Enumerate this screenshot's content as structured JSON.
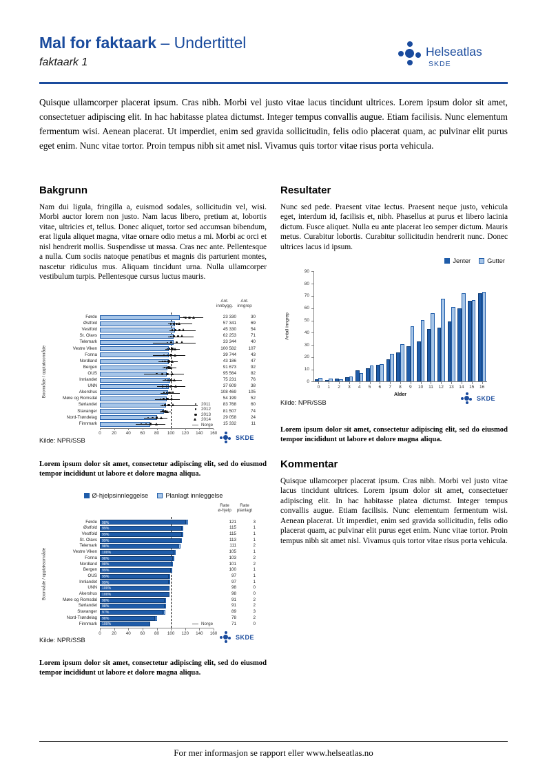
{
  "header": {
    "title_bold": "Mal for faktaark",
    "title_rest": " – Undertittel",
    "tagline": "faktaark 1",
    "logo_text": "Helseatlas",
    "logo_sub": "SKDE"
  },
  "intro": "Quisque ullamcorper placerat ipsum. Cras nibh. Morbi vel justo vitae lacus tincidunt ultrices. Lorem ipsum dolor sit amet, consectetuer adipiscing elit. In hac habitasse platea dictumst. Integer tempus convallis augue. Etiam facilisis. Nunc elementum fermentum wisi. Aenean placerat. Ut imperdiet, enim sed gravida sollicitudin, felis odio placerat quam, ac pulvinar elit purus eget enim. Nunc vitae tortor. Proin tempus nibh sit amet nisl. Vivamus quis tortor vitae risus porta vehicula.",
  "bakgrunn": {
    "heading": "Bakgrunn",
    "text": "Nam dui ligula, fringilla a, euismod sodales, sollicitudin vel, wisi. Morbi auctor lorem non justo. Nam lacus libero, pretium at, lobortis vitae, ultricies et, tellus. Donec aliquet, tortor sed accumsan bibendum, erat ligula aliquet magna, vitae ornare odio metus a mi. Morbi ac orci et nisl hendrerit mollis. Suspendisse ut massa. Cras nec ante. Pellentesque a nulla. Cum sociis natoque penatibus et magnis dis parturient montes, nascetur ridiculus mus. Aliquam tincidunt urna. Nulla ullamcorper vestibulum turpis. Pellentesque cursus luctus mauris."
  },
  "resultater": {
    "heading": "Resultater",
    "text": "Nunc sed pede. Praesent vitae lectus. Praesent neque justo, vehicula eget, interdum id, facilisis et, nibh. Phasellus at purus et libero lacinia dictum. Fusce aliquet. Nulla eu ante placerat leo semper dictum. Mauris metus. Curabitur lobortis. Curabitur sollicitudin hendrerit nunc. Donec ultrices lacus id ipsum."
  },
  "kommentar": {
    "heading": "Kommentar",
    "text": "Quisque ullamcorper placerat ipsum. Cras nibh. Morbi vel justo vitae lacus tincidunt ultrices. Lorem ipsum dolor sit amet, consectetuer adipiscing elit. In hac habitasse platea dictumst. Integer tempus convallis augue. Etiam facilisis. Nunc elementum fermentum wisi. Aenean placerat. Ut imperdiet, enim sed gravida sollicitudin, felis odio placerat quam, ac pulvinar elit purus eget enim. Nunc vitae tortor. Proin tempus nibh sit amet nisl. Vivamus quis tortor vitae risus porta vehicula.",
    "heading_note": ""
  },
  "caption": "Lorem ipsum dolor sit amet, consectetur adipiscing elit, sed do eiusmod tempor incididunt ut labore et dolore magna aliqua.",
  "footer": "For mer informasjon se rapport eller www.helseatlas.no",
  "colors": {
    "brand_blue": "#1A4B9D",
    "bar_dark": "#1F5CA9",
    "bar_dark_border": "#123D73",
    "bar_light": "#A6C5E8",
    "norge_line": "#000000"
  },
  "chart_data": [
    {
      "id": "area-rate-chart",
      "type": "bar",
      "orientation": "horizontal",
      "ylabel": "Boområde / opptaksområde",
      "xlim": [
        0,
        160
      ],
      "xticks": [
        0,
        20,
        40,
        60,
        80,
        100,
        120,
        140,
        160
      ],
      "norge_value": 100,
      "legend": [
        {
          "marker": "dot-small",
          "label": "2011"
        },
        {
          "marker": "dot-medium",
          "label": "2012"
        },
        {
          "marker": "dot-large",
          "label": "2013"
        },
        {
          "marker": "triangle",
          "label": "2014"
        },
        {
          "marker": "dash",
          "label": "Norge"
        }
      ],
      "columns": [
        "Ant. innbygg.",
        "Ant. inngrep"
      ],
      "source": "Kilde: NPR/SSB",
      "logo": "SKDE",
      "rows": [
        {
          "name": "Førde",
          "bar": 112,
          "whisker": [
            112,
            145
          ],
          "markers": [
            118,
            121,
            126,
            132
          ],
          "innbygg": "23 330",
          "inngrep": "30"
        },
        {
          "name": "Østfold",
          "bar": 106,
          "whisker": [
            96,
            130
          ],
          "markers": [
            100,
            104,
            108,
            112
          ],
          "innbygg": "57 341",
          "inngrep": "69"
        },
        {
          "name": "Vestfold",
          "bar": 106,
          "whisker": [
            98,
            135
          ],
          "markers": [
            102,
            106,
            112,
            118
          ],
          "innbygg": "45 330",
          "inngrep": "54"
        },
        {
          "name": "St. Olavs",
          "bar": 104,
          "whisker": [
            96,
            132
          ],
          "markers": [
            100,
            104,
            110,
            116
          ],
          "innbygg": "62 253",
          "inngrep": "71"
        },
        {
          "name": "Telemark",
          "bar": 104,
          "whisker": [
            75,
            135
          ],
          "markers": [
            95,
            100,
            108,
            116
          ],
          "innbygg": "33 344",
          "inngrep": "40"
        },
        {
          "name": "Vestre Viken",
          "bar": 97,
          "whisker": [
            92,
            112
          ],
          "markers": [
            95,
            98,
            102,
            106
          ],
          "innbygg": "100 582",
          "inngrep": "107"
        },
        {
          "name": "Fonna",
          "bar": 97,
          "whisker": [
            75,
            120
          ],
          "markers": [
            90,
            95,
            100,
            106
          ],
          "innbygg": "39 744",
          "inngrep": "43"
        },
        {
          "name": "Nordland",
          "bar": 97,
          "whisker": [
            82,
            110
          ],
          "markers": [
            88,
            92,
            97,
            102
          ],
          "innbygg": "43 186",
          "inngrep": "47"
        },
        {
          "name": "Bergen",
          "bar": 95,
          "whisker": [
            88,
            108
          ],
          "markers": [
            91,
            94,
            97,
            100
          ],
          "innbygg": "91 673",
          "inngrep": "92"
        },
        {
          "name": "OUS",
          "bar": 94,
          "whisker": [
            62,
            118
          ],
          "markers": [
            80,
            88,
            95,
            102
          ],
          "innbygg": "95 564",
          "inngrep": "82"
        },
        {
          "name": "Innlandet",
          "bar": 99,
          "whisker": [
            88,
            115
          ],
          "markers": [
            92,
            96,
            100,
            105
          ],
          "innbygg": "75 231",
          "inngrep": "76"
        },
        {
          "name": "UNN",
          "bar": 97,
          "whisker": [
            80,
            120
          ],
          "markers": [
            88,
            94,
            100,
            107
          ],
          "innbygg": "37 609",
          "inngrep": "38"
        },
        {
          "name": "Akershus",
          "bar": 96,
          "whisker": [
            85,
            112
          ],
          "markers": [
            90,
            94,
            98,
            103
          ],
          "innbygg": "108 469",
          "inngrep": "105"
        },
        {
          "name": "Møre og Romsdal",
          "bar": 94,
          "whisker": [
            78,
            112
          ],
          "markers": [
            85,
            90,
            95,
            101
          ],
          "innbygg": "54 199",
          "inngrep": "52"
        },
        {
          "name": "Sørlandet",
          "bar": 93,
          "whisker": [
            85,
            138
          ],
          "markers": [
            88,
            92,
            97,
            103
          ],
          "innbygg": "83 768",
          "inngrep": "60"
        },
        {
          "name": "Stavanger",
          "bar": 90,
          "whisker": [
            84,
            100
          ],
          "markers": [
            86,
            89,
            92,
            96
          ],
          "innbygg": "81 507",
          "inngrep": "74"
        },
        {
          "name": "Nord-Trøndelag",
          "bar": 80,
          "whisker": [
            62,
            95
          ],
          "markers": [
            68,
            74,
            80,
            87
          ],
          "innbygg": "29 058",
          "inngrep": "24"
        },
        {
          "name": "Finnmark",
          "bar": 71,
          "whisker": [
            50,
            92
          ],
          "markers": [
            58,
            65,
            71,
            80
          ],
          "innbygg": "15 332",
          "inngrep": "11"
        }
      ]
    },
    {
      "id": "admission-type-chart",
      "type": "stacked-bar",
      "orientation": "horizontal",
      "legend": [
        {
          "label": "Ø-hjelpsinnleggelse",
          "color_key": "bar_dark"
        },
        {
          "label": "Planlagt innleggelse",
          "color_key": "bar_light"
        }
      ],
      "ylabel": "Boområde / opptaksområde",
      "xlim": [
        0,
        160
      ],
      "xticks": [
        0,
        20,
        40,
        60,
        80,
        100,
        120,
        140,
        160
      ],
      "norge_value": 100,
      "norge_label": "Norge",
      "columns": [
        "Rate ø-hjelp",
        "Rate planlagt"
      ],
      "source": "Kilde: NPR/SSB",
      "logo": "SKDE",
      "rows": [
        {
          "name": "Førde",
          "pct": "98%",
          "rate_ohjelp": 121,
          "rate_planlagt": 3
        },
        {
          "name": "Østfold",
          "pct": "99%",
          "rate_ohjelp": 115,
          "rate_planlagt": 1
        },
        {
          "name": "Vestfold",
          "pct": "99%",
          "rate_ohjelp": 115,
          "rate_planlagt": 1
        },
        {
          "name": "St. Olavs",
          "pct": "99%",
          "rate_ohjelp": 113,
          "rate_planlagt": 1
        },
        {
          "name": "Telemark",
          "pct": "98%",
          "rate_ohjelp": 111,
          "rate_planlagt": 2
        },
        {
          "name": "Vestre Viken",
          "pct": "100%",
          "rate_ohjelp": 105,
          "rate_planlagt": 1
        },
        {
          "name": "Fonna",
          "pct": "98%",
          "rate_ohjelp": 103,
          "rate_planlagt": 2
        },
        {
          "name": "Nordland",
          "pct": "98%",
          "rate_ohjelp": 101,
          "rate_planlagt": 2
        },
        {
          "name": "Bergen",
          "pct": "99%",
          "rate_ohjelp": 100,
          "rate_planlagt": 1
        },
        {
          "name": "OUS",
          "pct": "99%",
          "rate_ohjelp": 97,
          "rate_planlagt": 1
        },
        {
          "name": "Innlandet",
          "pct": "99%",
          "rate_ohjelp": 97,
          "rate_planlagt": 1
        },
        {
          "name": "UNN",
          "pct": "100%",
          "rate_ohjelp": 98,
          "rate_planlagt": 0
        },
        {
          "name": "Akershus",
          "pct": "100%",
          "rate_ohjelp": 98,
          "rate_planlagt": 0
        },
        {
          "name": "Møre og Romsdal",
          "pct": "98%",
          "rate_ohjelp": 91,
          "rate_planlagt": 2
        },
        {
          "name": "Sørlandet",
          "pct": "98%",
          "rate_ohjelp": 91,
          "rate_planlagt": 2
        },
        {
          "name": "Stavanger",
          "pct": "97%",
          "rate_ohjelp": 89,
          "rate_planlagt": 3
        },
        {
          "name": "Nord-Trøndelag",
          "pct": "98%",
          "rate_ohjelp": 78,
          "rate_planlagt": 2
        },
        {
          "name": "Finnmark",
          "pct": "100%",
          "rate_ohjelp": 71,
          "rate_planlagt": 0
        }
      ]
    },
    {
      "id": "age-gender-chart",
      "type": "bar",
      "orientation": "vertical",
      "categories": [
        "0",
        "1",
        "2",
        "3",
        "4",
        "5",
        "6",
        "7",
        "8",
        "9",
        "10",
        "11",
        "12",
        "13",
        "14",
        "15",
        "16"
      ],
      "series": [
        {
          "name": "Jenter",
          "values": [
            2,
            1.5,
            2.5,
            3.5,
            9,
            11,
            13.5,
            18,
            24,
            29,
            33,
            43,
            44,
            49,
            60,
            66,
            72
          ]
        },
        {
          "name": "Gutter",
          "values": [
            3,
            2.5,
            2,
            4,
            7,
            13,
            14.5,
            23,
            30.5,
            45,
            50.5,
            56,
            68,
            61,
            72.5,
            66.5,
            73.5
          ]
        }
      ],
      "xlabel": "Alder",
      "ylabel": "Antall inngrep",
      "ylim": [
        0,
        90
      ],
      "yticks": [
        0,
        10,
        20,
        30,
        40,
        50,
        60,
        70,
        80,
        90
      ],
      "source": "Kilde: NPR/SSB",
      "logo": "SKDE"
    }
  ]
}
